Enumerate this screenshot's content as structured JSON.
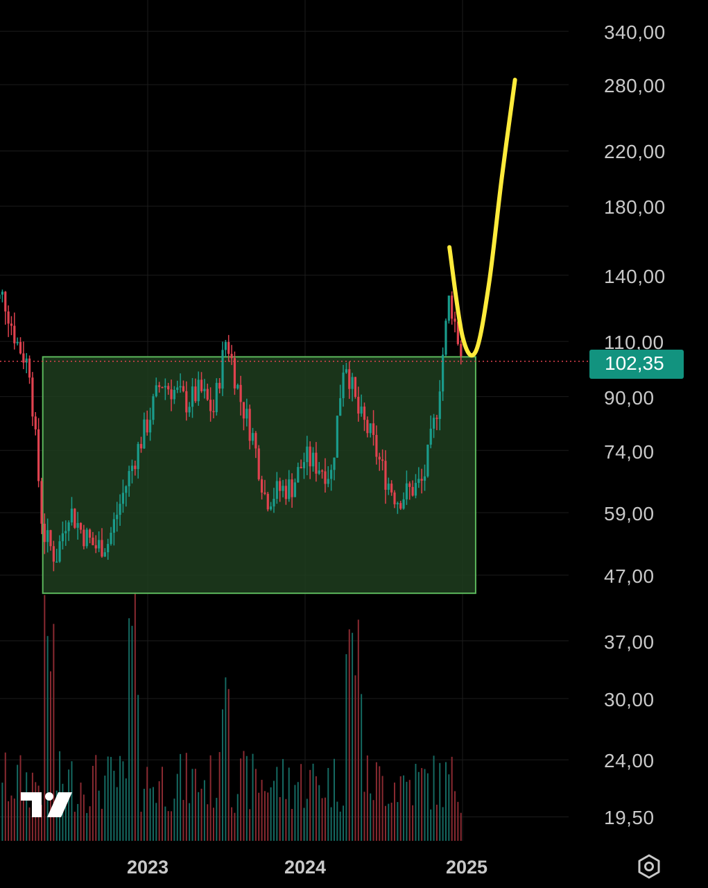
{
  "colors": {
    "background": "#000000",
    "grid": "#1c1c1c",
    "up": "#1a9c8c",
    "down": "#e0424f",
    "up_volume": "#156a62",
    "down_volume": "#8a2a31",
    "range_box_fill": "#1f3d1f",
    "range_box_border": "#5cb85c",
    "projection": "#ffeb3b",
    "price_line": "#e0424f",
    "price_tag": "#12937f",
    "axis_text": "#c9c9c9"
  },
  "icons": {
    "logo": "tradingview-logo",
    "settings": "settings-gear-icon"
  },
  "price_axis_labels": [
    "340,00",
    "280,00",
    "220,00",
    "180,00",
    "140,00",
    "110,00",
    "90,00",
    "74,00",
    "59,00",
    "47,00",
    "37,00",
    "30,00",
    "24,00",
    "19,50"
  ],
  "time_axis_labels": [
    "2023",
    "2024",
    "2025"
  ],
  "last_price": "102,35",
  "chart_data": {
    "type": "candlestick",
    "title": "",
    "xlabel": "",
    "ylabel": "",
    "y_scale": "log",
    "yticks": [
      340,
      280,
      220,
      180,
      140,
      110,
      90,
      74,
      59,
      47,
      37,
      30,
      24,
      19.5
    ],
    "xticks": [
      "2023",
      "2024",
      "2025"
    ],
    "last_price": 102.35,
    "grid": true,
    "series": [
      {
        "name": "",
        "type": "candlestick",
        "anchors": [
          {
            "t": "2022-01",
            "price": 125
          },
          {
            "t": "2022-02",
            "price": 130
          },
          {
            "t": "2022-03",
            "price": 110
          },
          {
            "t": "2022-04",
            "price": 100
          },
          {
            "t": "2022-05",
            "price": 55
          },
          {
            "t": "2022-06",
            "price": 50
          },
          {
            "t": "2022-07",
            "price": 60
          },
          {
            "t": "2022-08",
            "price": 55
          },
          {
            "t": "2022-09",
            "price": 52
          },
          {
            "t": "2022-10",
            "price": 53
          },
          {
            "t": "2022-11",
            "price": 62
          },
          {
            "t": "2022-12",
            "price": 72
          },
          {
            "t": "2023-01",
            "price": 82
          },
          {
            "t": "2023-02",
            "price": 95
          },
          {
            "t": "2023-03",
            "price": 92
          },
          {
            "t": "2023-04",
            "price": 88
          },
          {
            "t": "2023-05",
            "price": 92
          },
          {
            "t": "2023-06",
            "price": 85
          },
          {
            "t": "2023-07",
            "price": 112
          },
          {
            "t": "2023-08",
            "price": 90
          },
          {
            "t": "2023-09",
            "price": 78
          },
          {
            "t": "2023-10",
            "price": 62
          },
          {
            "t": "2023-11",
            "price": 64
          },
          {
            "t": "2023-12",
            "price": 65
          },
          {
            "t": "2024-01",
            "price": 72
          },
          {
            "t": "2024-02",
            "price": 70
          },
          {
            "t": "2024-03",
            "price": 68
          },
          {
            "t": "2024-04",
            "price": 105
          },
          {
            "t": "2024-05",
            "price": 85
          },
          {
            "t": "2024-06",
            "price": 78
          },
          {
            "t": "2024-07",
            "price": 68
          },
          {
            "t": "2024-08",
            "price": 62
          },
          {
            "t": "2024-09",
            "price": 64
          },
          {
            "t": "2024-10",
            "price": 66
          },
          {
            "t": "2024-11",
            "price": 85
          },
          {
            "t": "2024-12",
            "price": 130
          },
          {
            "t": "2025-01",
            "price": 102.35
          }
        ]
      }
    ],
    "annotations": [
      {
        "type": "rectangle",
        "label": "",
        "from": "2022-05",
        "to": "2025-02",
        "price_low": 44,
        "price_high": 104
      },
      {
        "type": "projection_curve",
        "label": "",
        "points": [
          {
            "t": "2024-12",
            "price": 155
          },
          {
            "t": "2025-01",
            "price": 112
          },
          {
            "t": "2025-02",
            "price": 106
          },
          {
            "t": "2025-03",
            "price": 135
          },
          {
            "t": "2025-04",
            "price": 200
          },
          {
            "t": "2025-05",
            "price": 285
          }
        ]
      }
    ]
  }
}
